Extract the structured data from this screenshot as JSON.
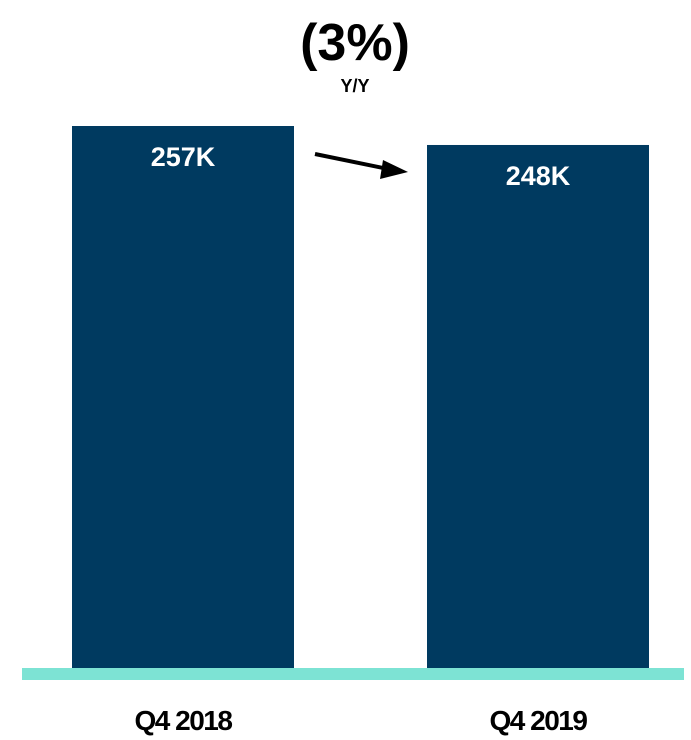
{
  "header": {
    "change": "(3%)",
    "change_label": "Y/Y"
  },
  "colors": {
    "bar": "#003a60",
    "baseline": "#7de3d4",
    "arrow": "#000000"
  },
  "chart_data": {
    "type": "bar",
    "categories": [
      "Q4 2018",
      "Q4 2019"
    ],
    "values": [
      257,
      248
    ],
    "value_labels": [
      "257K",
      "248K"
    ],
    "title": "",
    "xlabel": "",
    "ylabel": "",
    "ylim": [
      0,
      257
    ],
    "grid": false,
    "legend": "none",
    "annotation": {
      "from_category": "Q4 2018",
      "to_category": "Q4 2019",
      "text": "(3%)",
      "subtext": "Y/Y"
    }
  }
}
